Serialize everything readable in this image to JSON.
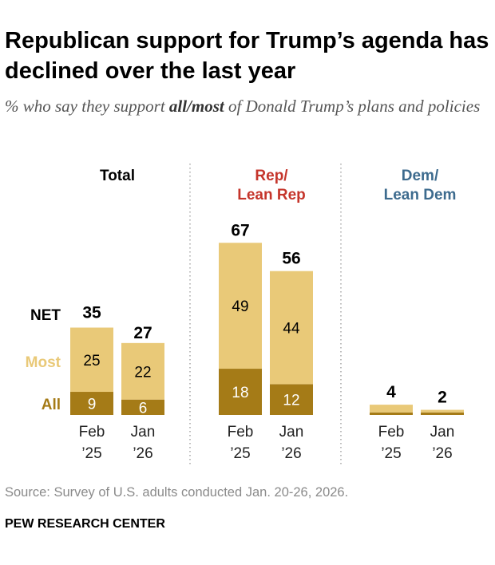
{
  "title": "Republican support for Trump’s agenda has declined over the last year",
  "subtitle": {
    "pre": "% who say they support ",
    "emph": "all/most",
    "post": " of Donald Trump’s plans and policies"
  },
  "source": "Source: Survey of U.S. adults conducted Jan. 20-26, 2026.",
  "org": "PEW RESEARCH CENTER",
  "colors": {
    "all": "#A57B17",
    "most": "#E9C978",
    "rep": "#C5352B",
    "dem": "#3D6B8E",
    "net": "#000000"
  },
  "chart_data": {
    "type": "bar",
    "stacked": true,
    "legend": {
      "net": "NET",
      "most": "Most",
      "all": "All"
    },
    "categories": [
      [
        "Feb",
        "’25"
      ],
      [
        "Jan",
        "’26"
      ]
    ],
    "panels": [
      {
        "title": [
          "Total"
        ],
        "color": "#000000",
        "all": [
          9,
          6
        ],
        "most": [
          25,
          22
        ],
        "net": [
          35,
          27
        ],
        "show_segment_labels": true
      },
      {
        "title": [
          "Rep/",
          "Lean Rep"
        ],
        "color": "#C5352B",
        "all": [
          18,
          12
        ],
        "most": [
          49,
          44
        ],
        "net": [
          67,
          56
        ],
        "show_segment_labels": true
      },
      {
        "title": [
          "Dem/",
          "Lean Dem"
        ],
        "color": "#3D6B8E",
        "all": [
          1,
          1
        ],
        "most": [
          3,
          1
        ],
        "net": [
          4,
          2
        ],
        "show_segment_labels": false
      }
    ]
  }
}
